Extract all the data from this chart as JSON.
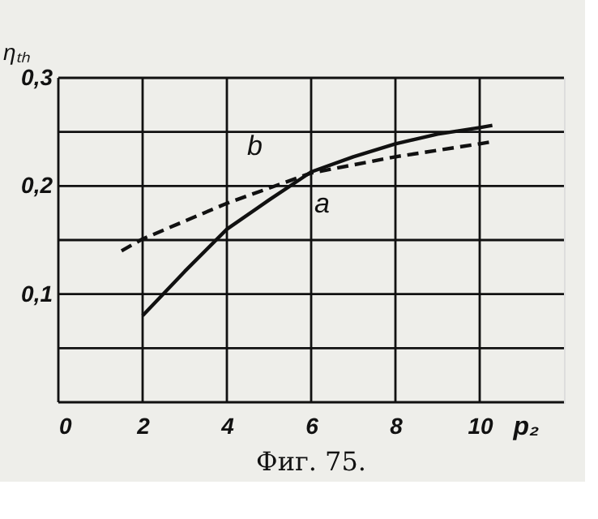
{
  "chart_data": {
    "type": "line",
    "xlabel": "p₂",
    "ylabel": "ηₜₕ",
    "xlim": [
      0,
      12
    ],
    "ylim": [
      0,
      0.3
    ],
    "xticks": [
      0,
      2,
      4,
      6,
      8,
      10
    ],
    "yticks": [
      {
        "value": 0,
        "label": null
      },
      {
        "value": 0.05,
        "label": null
      },
      {
        "value": 0.1,
        "label": "0,1"
      },
      {
        "value": 0.15,
        "label": null
      },
      {
        "value": 0.2,
        "label": "0,2"
      },
      {
        "value": 0.25,
        "label": null
      },
      {
        "value": 0.3,
        "label": "0,3"
      }
    ],
    "grid": true,
    "marker": "none",
    "series": [
      {
        "name": "a",
        "color": "#111111",
        "line_style": "solid",
        "x": [
          2,
          3,
          4,
          5,
          6,
          7,
          8,
          9,
          10,
          10.3
        ],
        "values": [
          0.08,
          0.121,
          0.16,
          0.187,
          0.213,
          0.227,
          0.239,
          0.248,
          0.254,
          0.256
        ]
      },
      {
        "name": "b",
        "color": "#111111",
        "line_style": "dashed",
        "x": [
          1.5,
          2,
          4,
          6,
          8,
          10,
          10.3
        ],
        "values": [
          0.14,
          0.151,
          0.184,
          0.212,
          0.227,
          0.239,
          0.241
        ]
      }
    ],
    "annotations": [
      "Фиг. 75."
    ]
  }
}
